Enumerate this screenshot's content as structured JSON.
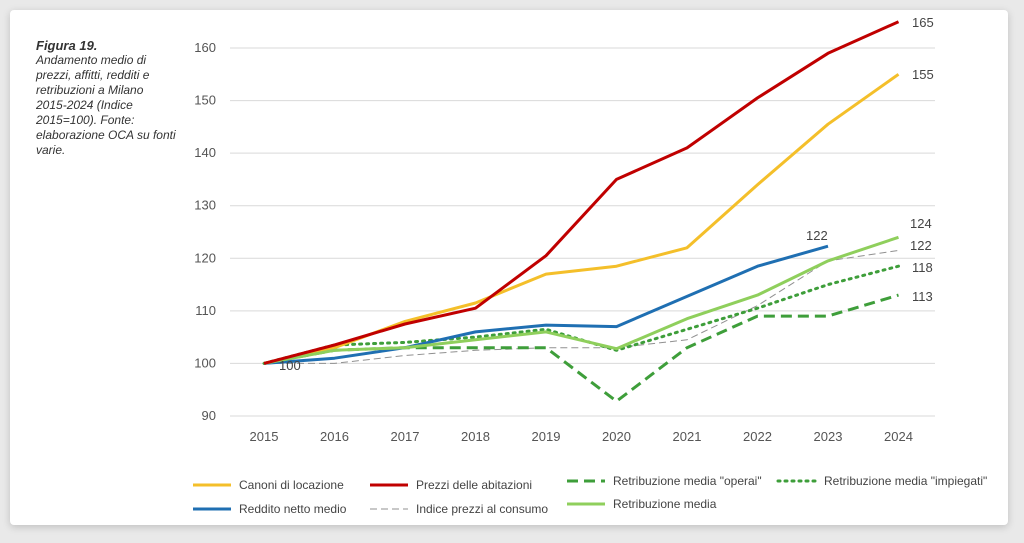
{
  "caption": {
    "figure": "Figura 19.",
    "text": "Andamento medio di prezzi, affitti, redditi e retribuzioni a Milano 2015-2024 (Indice 2015=100). Fonte: elaborazione OCA su fonti varie."
  },
  "chart_data": {
    "type": "line",
    "title": "",
    "xlabel": "",
    "ylabel": "",
    "x": [
      2015,
      2016,
      2017,
      2018,
      2019,
      2020,
      2021,
      2022,
      2023,
      2024
    ],
    "ylim": [
      90,
      165
    ],
    "yticks": [
      90,
      100,
      110,
      120,
      130,
      140,
      150,
      160
    ],
    "grid": true,
    "legend_position": "bottom",
    "series": [
      {
        "name": "Canoni di locazione",
        "color": "#f4bf2a",
        "style": "solid",
        "width": 3,
        "values": [
          100,
          103,
          108,
          111.5,
          117,
          118.5,
          122,
          134,
          145.5,
          155
        ],
        "end_label": "155"
      },
      {
        "name": "Prezzi delle abitazioni",
        "color": "#c00000",
        "style": "solid",
        "width": 3,
        "values": [
          100,
          103.5,
          107.5,
          110.5,
          120.5,
          135,
          141,
          150.5,
          159,
          165
        ],
        "end_label": "165"
      },
      {
        "name": "Retribuzione media \"operai\"",
        "color": "#3e9e3a",
        "style": "dashed",
        "width": 3,
        "values": [
          100,
          102.5,
          103,
          103,
          103,
          92.8,
          103,
          109,
          109,
          113
        ],
        "end_label": "113"
      },
      {
        "name": "Retribuzione media \"impiegati\"",
        "color": "#3e9e3a",
        "style": "dotted",
        "width": 3,
        "values": [
          100,
          103.5,
          104,
          105,
          106.5,
          102.5,
          106.5,
          110.5,
          115,
          118.5
        ],
        "end_label": "118"
      },
      {
        "name": "Reddito netto medio",
        "color": "#1f6fb2",
        "style": "solid",
        "width": 3,
        "values": [
          100,
          101,
          103,
          106,
          107.3,
          107,
          null,
          118.5,
          122.3,
          null
        ],
        "end_label": "122"
      },
      {
        "name": "Indice prezzi al consumo",
        "color": "#909090",
        "style": "thindash",
        "width": 1,
        "values": [
          100,
          100,
          101.5,
          102.5,
          103,
          103,
          104.5,
          111,
          119.5,
          121.5
        ],
        "end_label": "122"
      },
      {
        "name": "Retribuzione media",
        "color": "#8fcf5c",
        "style": "solid",
        "width": 3,
        "values": [
          100,
          102.5,
          103,
          104.5,
          106,
          102.8,
          108.5,
          113,
          119.5,
          124
        ],
        "end_label": "124"
      }
    ],
    "start_label": "100"
  }
}
